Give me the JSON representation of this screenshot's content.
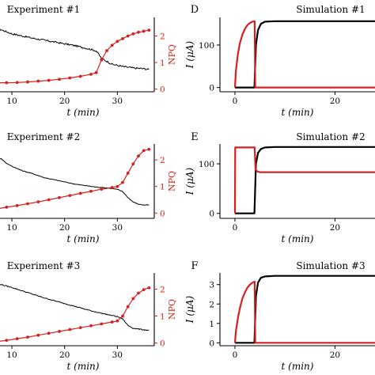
{
  "chart_data": [
    {
      "id": "exp1",
      "type": "line",
      "title": "Experiment #1",
      "xlabel": "t (min)",
      "ylabel": "",
      "y2label": "NPQ",
      "xticks": [
        10,
        20,
        30
      ],
      "yticks": [],
      "y2ticks": [
        0,
        1,
        2
      ],
      "xlim": [
        7,
        37
      ],
      "ylim": [
        0,
        1
      ],
      "y2lim": [
        -0.1,
        2.7
      ],
      "series": [
        {
          "role": "fluorescence",
          "color": "#000000",
          "axis": "left",
          "noise": 0.012,
          "points": [
            [
              7,
              0.86
            ],
            [
              10,
              0.78
            ],
            [
              14,
              0.72
            ],
            [
              18,
              0.67
            ],
            [
              22,
              0.62
            ],
            [
              25,
              0.57
            ],
            [
              26,
              0.55
            ],
            [
              27,
              0.45
            ],
            [
              29,
              0.37
            ],
            [
              31,
              0.34
            ],
            [
              33,
              0.32
            ],
            [
              35,
              0.31
            ],
            [
              36,
              0.3
            ]
          ]
        },
        {
          "role": "NPQ",
          "color": "#d62020",
          "axis": "right",
          "markers": true,
          "points": [
            [
              7,
              0.24
            ],
            [
              9,
              0.24
            ],
            [
              11,
              0.25
            ],
            [
              13,
              0.27
            ],
            [
              15,
              0.3
            ],
            [
              17,
              0.33
            ],
            [
              19,
              0.37
            ],
            [
              21,
              0.42
            ],
            [
              23,
              0.48
            ],
            [
              25,
              0.56
            ],
            [
              26,
              0.62
            ],
            [
              27,
              1.1
            ],
            [
              28,
              1.45
            ],
            [
              29,
              1.65
            ],
            [
              30,
              1.8
            ],
            [
              31,
              1.9
            ],
            [
              32,
              2.0
            ],
            [
              33,
              2.08
            ],
            [
              34,
              2.14
            ],
            [
              35,
              2.18
            ],
            [
              36,
              2.22
            ]
          ]
        }
      ]
    },
    {
      "id": "exp2",
      "type": "line",
      "title": "Experiment #2",
      "xlabel": "t (min)",
      "ylabel": "",
      "y2label": "NPQ",
      "xticks": [
        10,
        20,
        30
      ],
      "yticks": [],
      "y2ticks": [
        0,
        1,
        2
      ],
      "xlim": [
        7,
        37
      ],
      "ylim": [
        0,
        1
      ],
      "y2lim": [
        -0.2,
        2.6
      ],
      "series": [
        {
          "role": "fluorescence",
          "color": "#000000",
          "axis": "left",
          "noise": 0.004,
          "points": [
            [
              7,
              0.82
            ],
            [
              8,
              0.8
            ],
            [
              9,
              0.74
            ],
            [
              10,
              0.7
            ],
            [
              12,
              0.64
            ],
            [
              14,
              0.6
            ],
            [
              16,
              0.55
            ],
            [
              18,
              0.52
            ],
            [
              20,
              0.49
            ],
            [
              22,
              0.46
            ],
            [
              24,
              0.44
            ],
            [
              26,
              0.42
            ],
            [
              28,
              0.41
            ],
            [
              30,
              0.39
            ],
            [
              31,
              0.36
            ],
            [
              32,
              0.28
            ],
            [
              33,
              0.22
            ],
            [
              34,
              0.19
            ],
            [
              35,
              0.18
            ],
            [
              36,
              0.18
            ]
          ]
        },
        {
          "role": "NPQ",
          "color": "#d62020",
          "axis": "right",
          "markers": true,
          "points": [
            [
              7,
              0.15
            ],
            [
              9,
              0.22
            ],
            [
              11,
              0.28
            ],
            [
              13,
              0.35
            ],
            [
              15,
              0.42
            ],
            [
              17,
              0.5
            ],
            [
              19,
              0.58
            ],
            [
              21,
              0.66
            ],
            [
              23,
              0.74
            ],
            [
              25,
              0.82
            ],
            [
              27,
              0.9
            ],
            [
              29,
              0.96
            ],
            [
              30,
              1.0
            ],
            [
              31,
              1.15
            ],
            [
              32,
              1.5
            ],
            [
              33,
              1.85
            ],
            [
              34,
              2.15
            ],
            [
              35,
              2.35
            ],
            [
              36,
              2.4
            ]
          ]
        }
      ]
    },
    {
      "id": "exp3",
      "type": "line",
      "title": "Experiment #3",
      "xlabel": "t (min)",
      "ylabel": "",
      "y2label": "NPQ",
      "xticks": [
        10,
        20,
        30
      ],
      "yticks": [],
      "y2ticks": [
        0,
        1,
        2
      ],
      "xlim": [
        7,
        37
      ],
      "ylim": [
        0,
        1
      ],
      "y2lim": [
        -0.1,
        2.6
      ],
      "series": [
        {
          "role": "fluorescence",
          "color": "#000000",
          "axis": "left",
          "noise": 0.006,
          "points": [
            [
              7,
              0.86
            ],
            [
              10,
              0.8
            ],
            [
              13,
              0.73
            ],
            [
              16,
              0.66
            ],
            [
              19,
              0.6
            ],
            [
              22,
              0.54
            ],
            [
              25,
              0.48
            ],
            [
              28,
              0.43
            ],
            [
              30,
              0.4
            ],
            [
              31,
              0.37
            ],
            [
              32,
              0.28
            ],
            [
              33,
              0.24
            ],
            [
              35,
              0.22
            ],
            [
              36,
              0.21
            ]
          ]
        },
        {
          "role": "NPQ",
          "color": "#d62020",
          "axis": "right",
          "markers": true,
          "points": [
            [
              7,
              0.05
            ],
            [
              9,
              0.1
            ],
            [
              11,
              0.16
            ],
            [
              13,
              0.22
            ],
            [
              15,
              0.29
            ],
            [
              17,
              0.36
            ],
            [
              19,
              0.43
            ],
            [
              21,
              0.5
            ],
            [
              23,
              0.57
            ],
            [
              25,
              0.64
            ],
            [
              27,
              0.71
            ],
            [
              29,
              0.78
            ],
            [
              30,
              0.82
            ],
            [
              31,
              1.0
            ],
            [
              32,
              1.35
            ],
            [
              33,
              1.65
            ],
            [
              34,
              1.85
            ],
            [
              35,
              1.98
            ],
            [
              36,
              2.05
            ]
          ]
        }
      ]
    },
    {
      "id": "simA",
      "type": "line",
      "letter": "D",
      "title": "Simulation #1",
      "xlabel": "t (min)",
      "ylabel": "I (μA)",
      "xticks": [
        0,
        20
      ],
      "yticks": [
        0,
        100
      ],
      "xlim": [
        -3,
        28
      ],
      "ylim": [
        -10,
        165
      ],
      "series": [
        {
          "color": "#000000",
          "points": [
            [
              0,
              0
            ],
            [
              3.9,
              0
            ],
            [
              4.2,
              100
            ],
            [
              4.6,
              135
            ],
            [
              5.2,
              150
            ],
            [
              6,
              155
            ],
            [
              8,
              156
            ],
            [
              28,
              156
            ]
          ]
        },
        {
          "color": "#d62020",
          "points": [
            [
              0,
              0
            ],
            [
              0.2,
              40
            ],
            [
              0.6,
              80
            ],
            [
              1,
              105
            ],
            [
              1.5,
              125
            ],
            [
              2,
              138
            ],
            [
              2.5,
              147
            ],
            [
              3,
              152
            ],
            [
              3.5,
              155
            ],
            [
              3.95,
              156
            ],
            [
              4.05,
              0
            ],
            [
              28,
              0
            ]
          ]
        }
      ]
    },
    {
      "id": "simB",
      "type": "line",
      "letter": "E",
      "title": "Simulation #2",
      "xlabel": "t (min)",
      "ylabel": "I (μA)",
      "xticks": [
        0,
        20
      ],
      "yticks": [
        0,
        100
      ],
      "xlim": [
        -3,
        28
      ],
      "ylim": [
        -10,
        140
      ],
      "series": [
        {
          "color": "#000000",
          "points": [
            [
              0,
              0
            ],
            [
              3.9,
              0
            ],
            [
              4.2,
              100
            ],
            [
              4.6,
              122
            ],
            [
              5.2,
              130
            ],
            [
              6,
              133
            ],
            [
              8,
              134
            ],
            [
              28,
              134
            ]
          ]
        },
        {
          "color": "#d62020",
          "points": [
            [
              0,
              0
            ],
            [
              0.05,
              133
            ],
            [
              3.95,
              133
            ],
            [
              4.1,
              90
            ],
            [
              4.4,
              85
            ],
            [
              5,
              83
            ],
            [
              28,
              83
            ]
          ]
        }
      ]
    },
    {
      "id": "simC",
      "type": "line",
      "letter": "F",
      "title": "Simulation #3",
      "xlabel": "t (min)",
      "ylabel": "I (μA)",
      "xticks": [
        0,
        20
      ],
      "yticks": [
        0,
        1,
        2,
        3
      ],
      "xlim": [
        -3,
        28
      ],
      "ylim": [
        -0.15,
        3.6
      ],
      "series": [
        {
          "color": "#000000",
          "points": [
            [
              0,
              0
            ],
            [
              3.9,
              0
            ],
            [
              4.2,
              2.4
            ],
            [
              4.6,
              3.1
            ],
            [
              5.2,
              3.35
            ],
            [
              6,
              3.42
            ],
            [
              8,
              3.45
            ],
            [
              28,
              3.45
            ]
          ]
        },
        {
          "color": "#d62020",
          "points": [
            [
              0,
              0
            ],
            [
              0.2,
              0.6
            ],
            [
              0.6,
              1.3
            ],
            [
              1,
              1.8
            ],
            [
              1.5,
              2.3
            ],
            [
              2,
              2.6
            ],
            [
              2.5,
              2.85
            ],
            [
              3,
              3.0
            ],
            [
              3.5,
              3.1
            ],
            [
              3.95,
              3.15
            ],
            [
              4.05,
              0
            ],
            [
              28,
              0
            ]
          ]
        }
      ]
    }
  ]
}
